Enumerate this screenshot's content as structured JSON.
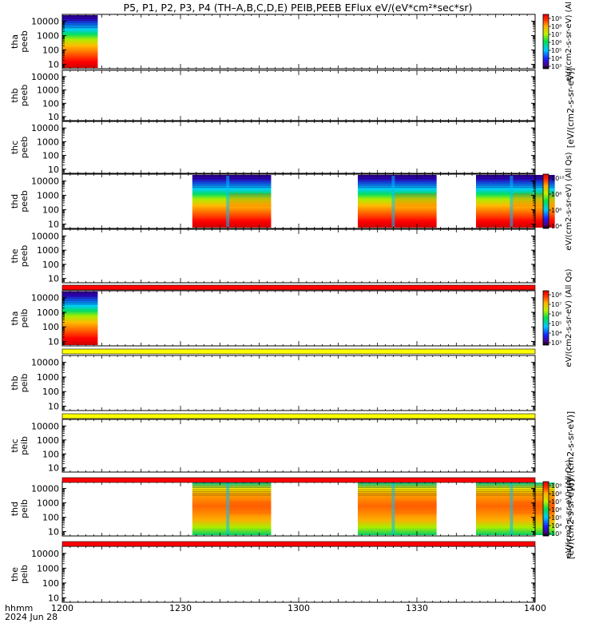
{
  "title": "P5, P1, P2, P3, P4 (TH–A,B,C,D,E) PEIB,PEEB EFlux eV/(eV*cm²*sec*sr)",
  "colors": {
    "background": "#ffffff",
    "axes": "#000000",
    "missing_fill": "#ffffff"
  },
  "chart_data": {
    "type": "heatmap",
    "x_axis": {
      "ticks": [
        "1200",
        "1230",
        "1300",
        "1330",
        "1400"
      ],
      "tick_minutes": [
        0,
        30,
        60,
        90,
        120
      ],
      "range_minutes": [
        0,
        120
      ],
      "row_label_1": "hhmm",
      "row_label_2": "2024 Jun 28"
    },
    "y_axis": {
      "scale": "log",
      "ticks": [
        "10",
        "100",
        "1000",
        "10000"
      ],
      "range": [
        5,
        30000
      ]
    },
    "panels": [
      {
        "probe": "tha",
        "product": "peeb",
        "data_blocks": [
          [
            0,
            9
          ]
        ],
        "colorbar": {
          "label": "eV/(cm2-s-sr-eV)  (Al",
          "ticks": [
            "10³",
            "10⁴",
            "10⁵",
            "10⁶",
            "10⁷",
            "10⁸",
            "10⁹"
          ]
        }
      },
      {
        "probe": "thb",
        "product": "peeb",
        "data_blocks": [],
        "colorbar": null
      },
      {
        "probe": "thc",
        "product": "peeb",
        "data_blocks": [],
        "colorbar": null
      },
      {
        "probe": "thd",
        "product": "peeb",
        "data_blocks": [
          [
            33,
            53
          ],
          [
            75,
            95
          ],
          [
            105,
            125
          ]
        ],
        "colorbar": {
          "label": "eV/(cm2-s-sr-eV)  (All Qs)",
          "ticks": [
            "10⁴",
            "10⁶",
            "10⁸",
            "10¹⁰"
          ]
        }
      },
      {
        "probe": "the",
        "product": "peeb",
        "data_blocks": [],
        "colorbar": null
      },
      {
        "probe": "tha",
        "product": "peib",
        "data_blocks": [
          [
            0,
            9
          ]
        ],
        "colorbar": {
          "label": "eV/(cm2-s-sr-eV)  (All Qs)",
          "ticks": [
            "10³",
            "10⁴",
            "10⁵",
            "10⁶",
            "10⁷",
            "10⁸"
          ]
        }
      },
      {
        "probe": "thb",
        "product": "peib",
        "data_blocks": [],
        "colorbar": null
      },
      {
        "probe": "thc",
        "product": "peib",
        "data_blocks": [],
        "colorbar": null
      },
      {
        "probe": "thd",
        "product": "peib",
        "data_blocks": [
          [
            33,
            53
          ],
          [
            75,
            95
          ],
          [
            105,
            125
          ]
        ],
        "colorbar": {
          "label": "eV/(cm2-s-sr-eV)  (All Qs)",
          "ticks": [
            "10³",
            "10⁴",
            "10⁵",
            "10⁶",
            "10⁷",
            "10⁸",
            "10⁹"
          ]
        }
      },
      {
        "probe": "the",
        "product": "peib",
        "data_blocks": [],
        "colorbar": null
      }
    ],
    "status_bars": [
      {
        "color": "#ff0000"
      },
      {
        "color": "#ffff00"
      },
      {
        "color": "#ffff00"
      },
      {
        "color": "#ff0000"
      },
      {
        "color": "#ff0000"
      }
    ],
    "side_labels": [
      "[eV/(cm2-s-sr-eV)]",
      "[eV/(cm2-s-sr-eV)]",
      "[eV/(cm2-s-sr-eV)]"
    ]
  }
}
